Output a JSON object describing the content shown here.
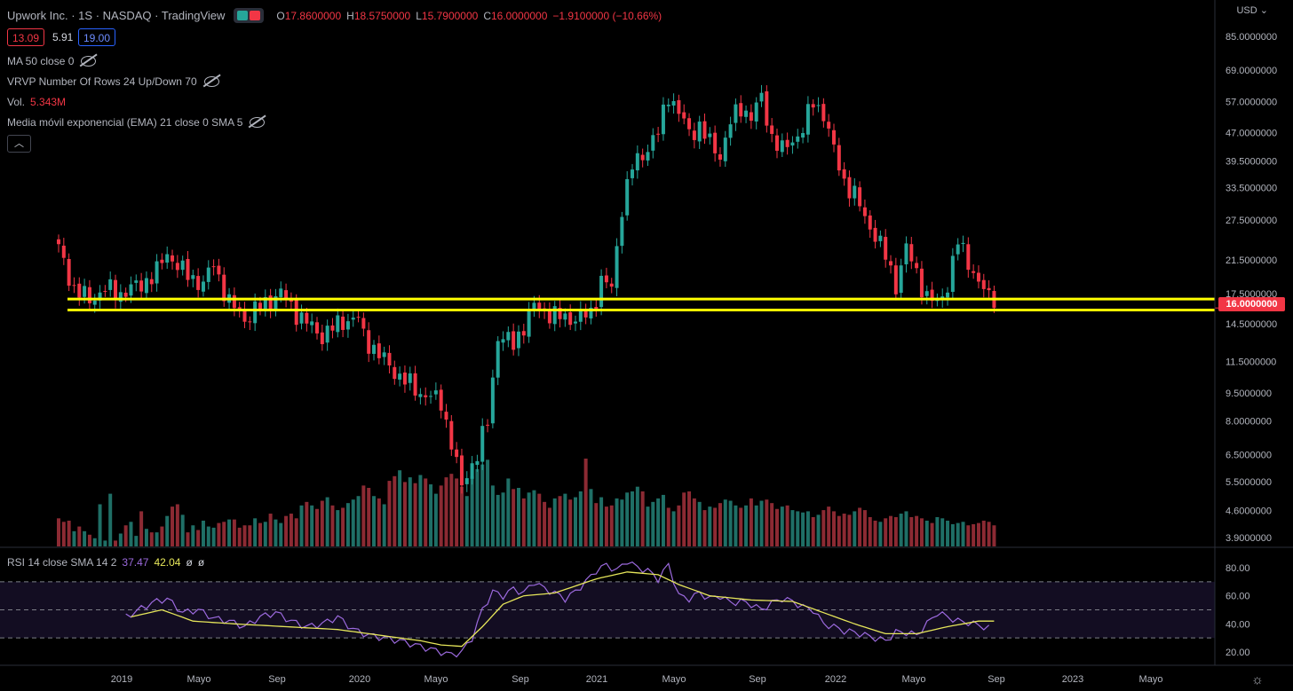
{
  "header": {
    "title": "Upwork Inc. · 1S · NASDAQ · TradingView",
    "open_label": "O",
    "open": "17.8600000",
    "high_label": "H",
    "high": "18.5750000",
    "low_label": "L",
    "low": "15.7900000",
    "close_label": "C",
    "close": "16.0000000",
    "change": "−1.9100000 (−10.66%)",
    "toggle_icon": "candles-icon",
    "up_color": "#26a69a",
    "down_color": "#f23645"
  },
  "price_boxes": {
    "bid": "13.09",
    "spread": "5.91",
    "ask": "19.00"
  },
  "indicators": {
    "ma": "MA 50 close 0",
    "vrvp": "VRVP Number Of Rows 24 Up/Down 70",
    "vol_label": "Vol.",
    "vol_value": "5.343M",
    "ema": "Media móvil exponencial (EMA) 21 close 0 SMA 5"
  },
  "rsi_legend": {
    "label": "RSI 14 close SMA 14 2",
    "rsi": "37.47",
    "sma": "42.04",
    "extra1": "ø",
    "extra2": "ø"
  },
  "currency": "USD",
  "last_price": "16.0000000",
  "chart_data": [
    {
      "type": "candlestick",
      "price_scale": "log",
      "y_ticks": [
        "85.0000000",
        "69.0000000",
        "57.0000000",
        "47.0000000",
        "39.5000000",
        "33.5000000",
        "27.5000000",
        "21.5000000",
        "17.5000000",
        "14.5000000",
        "11.5000000",
        "9.5000000",
        "8.0000000",
        "6.5000000",
        "5.5000000",
        "4.6000000",
        "3.9000000"
      ],
      "x_ticks": [
        "2019",
        "Mayo",
        "Sep",
        "2020",
        "Mayo",
        "Sep",
        "2021",
        "Mayo",
        "Sep",
        "2022",
        "Mayo",
        "Sep",
        "2023",
        "Mayo"
      ],
      "support_lines": [
        16.9,
        15.8
      ],
      "support_color": "#ffff00",
      "anchors": [
        [
          0,
          23
        ],
        [
          3,
          18
        ],
        [
          6,
          16.8
        ],
        [
          9,
          18
        ],
        [
          12,
          17.5
        ],
        [
          16,
          18.5
        ],
        [
          19,
          20
        ],
        [
          21,
          22.5
        ],
        [
          24,
          20
        ],
        [
          28,
          18.5
        ],
        [
          30,
          21
        ],
        [
          33,
          16.5
        ],
        [
          36,
          15
        ],
        [
          40,
          16.5
        ],
        [
          43,
          17.5
        ],
        [
          47,
          15
        ],
        [
          51,
          13.5
        ],
        [
          55,
          14.8
        ],
        [
          58,
          15
        ],
        [
          59,
          13.5
        ],
        [
          62,
          12
        ],
        [
          66,
          10.5
        ],
        [
          70,
          9.5
        ],
        [
          74,
          9
        ],
        [
          76,
          7
        ],
        [
          78,
          5.3
        ],
        [
          79,
          5.8
        ],
        [
          81,
          6.5
        ],
        [
          83,
          8
        ],
        [
          85,
          13.5
        ],
        [
          88,
          12.8
        ],
        [
          92,
          16.2
        ],
        [
          96,
          15.2
        ],
        [
          100,
          15
        ],
        [
          103,
          15.5
        ],
        [
          105,
          19
        ],
        [
          107,
          18
        ],
        [
          109,
          30
        ],
        [
          111,
          38
        ],
        [
          114,
          43
        ],
        [
          116,
          47
        ],
        [
          118,
          60
        ],
        [
          120,
          53
        ],
        [
          122,
          47
        ],
        [
          124,
          49
        ],
        [
          126,
          44
        ],
        [
          128,
          41
        ],
        [
          130,
          50
        ],
        [
          132,
          55
        ],
        [
          134,
          52
        ],
        [
          136,
          58
        ],
        [
          138,
          46
        ],
        [
          140,
          42
        ],
        [
          142,
          45
        ],
        [
          144,
          48
        ],
        [
          146,
          57
        ],
        [
          148,
          53
        ],
        [
          150,
          42
        ],
        [
          152,
          35
        ],
        [
          154,
          32
        ],
        [
          156,
          28
        ],
        [
          158,
          25
        ],
        [
          160,
          22
        ],
        [
          162,
          18.5
        ],
        [
          164,
          23
        ],
        [
          166,
          20
        ],
        [
          168,
          17
        ],
        [
          170,
          16.5
        ],
        [
          172,
          18.5
        ],
        [
          174,
          24
        ],
        [
          176,
          21.5
        ],
        [
          178,
          18.5
        ],
        [
          180,
          17.2
        ],
        [
          181,
          16
        ]
      ],
      "volume_profile": [
        0.24,
        0.21,
        0.22,
        0.13,
        0.17,
        0.13,
        0.1,
        0.07,
        0.36,
        0.05,
        0.45,
        0.05,
        0.11,
        0.18,
        0.21,
        0.09,
        0.3,
        0.15,
        0.12,
        0.12,
        0.17,
        0.26,
        0.34,
        0.36,
        0.27,
        0.12,
        0.18,
        0.14,
        0.22,
        0.17,
        0.16,
        0.2,
        0.21,
        0.23,
        0.23,
        0.16,
        0.18,
        0.18,
        0.24,
        0.2,
        0.21,
        0.28,
        0.23,
        0.2,
        0.26,
        0.28,
        0.24,
        0.35,
        0.38,
        0.35,
        0.32,
        0.39,
        0.42,
        0.35,
        0.31,
        0.33,
        0.37,
        0.4,
        0.43,
        0.52,
        0.5,
        0.43,
        0.41,
        0.36,
        0.56,
        0.6,
        0.65,
        0.55,
        0.59,
        0.54,
        0.61,
        0.58,
        0.53,
        0.45,
        0.52,
        0.59,
        0.62,
        0.58,
        0.51,
        0.43,
        0.6,
        0.66,
        0.7,
        0.74,
        0.52,
        0.44,
        0.46,
        0.58,
        0.49,
        0.5,
        0.41,
        0.46,
        0.48,
        0.45,
        0.38,
        0.33,
        0.41,
        0.43,
        0.45,
        0.4,
        0.42,
        0.47,
        0.75,
        0.49,
        0.37,
        0.42,
        0.34,
        0.35,
        0.41,
        0.4,
        0.46,
        0.47,
        0.51,
        0.47,
        0.34,
        0.38,
        0.41,
        0.44,
        0.33,
        0.3,
        0.35,
        0.46,
        0.47,
        0.41,
        0.38,
        0.31,
        0.34,
        0.33,
        0.37,
        0.4,
        0.39,
        0.35,
        0.33,
        0.35,
        0.41,
        0.35,
        0.39,
        0.4,
        0.37,
        0.32,
        0.34,
        0.35,
        0.31,
        0.3,
        0.29,
        0.3,
        0.25,
        0.27,
        0.31,
        0.34,
        0.3,
        0.26,
        0.28,
        0.27,
        0.3,
        0.33,
        0.31,
        0.25,
        0.22,
        0.21,
        0.24,
        0.26,
        0.25,
        0.28,
        0.3,
        0.25,
        0.26,
        0.24,
        0.22,
        0.2,
        0.25,
        0.24,
        0.22,
        0.19,
        0.2,
        0.21,
        0.18,
        0.19,
        0.2,
        0.22,
        0.21,
        0.18,
        0.2,
        0.17,
        0.19,
        0.21
      ]
    },
    {
      "type": "line",
      "name": "RSI 14",
      "y_ticks": [
        "80.00",
        "60.00",
        "40.00",
        "20.00"
      ],
      "bands": [
        70,
        50,
        30
      ],
      "rsi_color": "#9c6ade",
      "sma_color": "#e6e65a",
      "rsi_anchors": [
        [
          13,
          45
        ],
        [
          18,
          55
        ],
        [
          21,
          58
        ],
        [
          24,
          48
        ],
        [
          27,
          50
        ],
        [
          30,
          44
        ],
        [
          33,
          42
        ],
        [
          36,
          38
        ],
        [
          39,
          45
        ],
        [
          42,
          48
        ],
        [
          45,
          42
        ],
        [
          48,
          38
        ],
        [
          51,
          40
        ],
        [
          54,
          45
        ],
        [
          57,
          36
        ],
        [
          60,
          32
        ],
        [
          63,
          30
        ],
        [
          66,
          28
        ],
        [
          69,
          25
        ],
        [
          72,
          22
        ],
        [
          74,
          20
        ],
        [
          76,
          18
        ],
        [
          78,
          20
        ],
        [
          80,
          30
        ],
        [
          82,
          50
        ],
        [
          84,
          63
        ],
        [
          86,
          60
        ],
        [
          88,
          65
        ],
        [
          90,
          62
        ],
        [
          92,
          70
        ],
        [
          94,
          65
        ],
        [
          96,
          62
        ],
        [
          98,
          58
        ],
        [
          100,
          63
        ],
        [
          102,
          70
        ],
        [
          104,
          78
        ],
        [
          106,
          82
        ],
        [
          108,
          78
        ],
        [
          110,
          85
        ],
        [
          112,
          80
        ],
        [
          114,
          78
        ],
        [
          116,
          72
        ],
        [
          118,
          82
        ],
        [
          120,
          60
        ],
        [
          122,
          58
        ],
        [
          124,
          62
        ],
        [
          126,
          58
        ],
        [
          128,
          60
        ],
        [
          130,
          55
        ],
        [
          132,
          56
        ],
        [
          134,
          54
        ],
        [
          136,
          50
        ],
        [
          138,
          55
        ],
        [
          140,
          58
        ],
        [
          142,
          56
        ],
        [
          144,
          52
        ],
        [
          146,
          50
        ],
        [
          148,
          40
        ],
        [
          150,
          38
        ],
        [
          152,
          35
        ],
        [
          154,
          34
        ],
        [
          156,
          32
        ],
        [
          158,
          30
        ],
        [
          160,
          28
        ],
        [
          162,
          34
        ],
        [
          164,
          34
        ],
        [
          166,
          32
        ],
        [
          168,
          40
        ],
        [
          170,
          48
        ],
        [
          172,
          45
        ],
        [
          174,
          42
        ],
        [
          176,
          41
        ],
        [
          178,
          39
        ],
        [
          180,
          37
        ]
      ],
      "sma_anchors": [
        [
          14,
          45
        ],
        [
          20,
          50
        ],
        [
          26,
          42
        ],
        [
          34,
          40
        ],
        [
          44,
          38
        ],
        [
          54,
          36
        ],
        [
          62,
          32
        ],
        [
          70,
          28
        ],
        [
          74,
          25
        ],
        [
          78,
          24
        ],
        [
          82,
          38
        ],
        [
          86,
          54
        ],
        [
          90,
          60
        ],
        [
          96,
          62
        ],
        [
          104,
          72
        ],
        [
          110,
          77
        ],
        [
          116,
          75
        ],
        [
          120,
          68
        ],
        [
          126,
          60
        ],
        [
          134,
          57
        ],
        [
          142,
          56
        ],
        [
          148,
          48
        ],
        [
          154,
          40
        ],
        [
          160,
          33
        ],
        [
          166,
          33
        ],
        [
          172,
          38
        ],
        [
          178,
          42
        ],
        [
          181,
          42
        ]
      ]
    }
  ]
}
